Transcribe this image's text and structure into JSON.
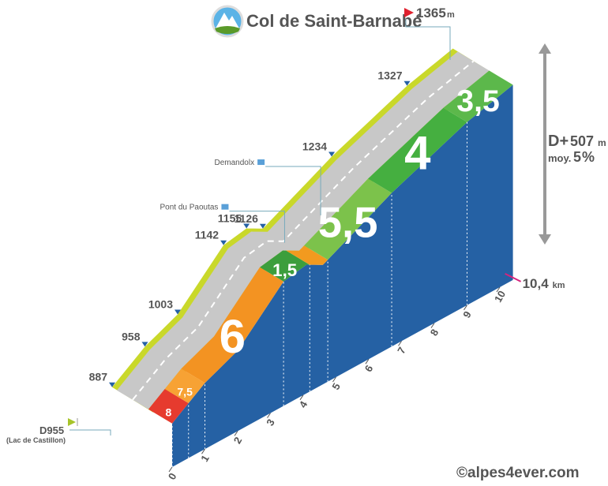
{
  "chart_data": {
    "type": "climb-profile",
    "title": "Col de Saint-Barnabé",
    "summit": {
      "altitude": 1365,
      "unit": "m"
    },
    "distance": {
      "value": 10.4,
      "label": "10,4",
      "unit": "km"
    },
    "elevation_gain": {
      "label": "D+",
      "value": 507,
      "unit": "m"
    },
    "average": {
      "label": "moy.",
      "value": 5,
      "unit": "%"
    },
    "start": {
      "road": "D955",
      "note": "(Lac de Castillon)"
    },
    "km_ticks": [
      0,
      1,
      2,
      3,
      4,
      5,
      6,
      7,
      8,
      9,
      10
    ],
    "segments": [
      {
        "start": 0,
        "end": 0.5,
        "gradient": 8,
        "color": "#e63b2e"
      },
      {
        "start": 0.5,
        "end": 1,
        "gradient": 7.5,
        "label": "7,5",
        "color": "#f7a234"
      },
      {
        "start": 1,
        "end": 3.4,
        "gradient": 6,
        "color": "#f39322"
      },
      {
        "start": 3.4,
        "end": 4.2,
        "gradient": 1.5,
        "label": "1,5",
        "color": "#3c9e3c"
      },
      {
        "start": 4.2,
        "end": 4.75,
        "gradient": null,
        "color": "#f29a1f"
      },
      {
        "start": 4.75,
        "end": 6.7,
        "gradient": 5.5,
        "label": "5,5",
        "color": "#7cc24b"
      },
      {
        "start": 6.7,
        "end": 9,
        "gradient": 4,
        "color": "#45af40"
      },
      {
        "start": 9,
        "end": 10.4,
        "gradient": 3.5,
        "label": "3,5",
        "color": "#5cb84b"
      }
    ],
    "waypoints": [
      {
        "km": 0,
        "altitude": 887
      },
      {
        "km": 1,
        "altitude": 958
      },
      {
        "km": 2,
        "altitude": 1003
      },
      {
        "km": 3.4,
        "altitude": 1142
      },
      {
        "km": 4.1,
        "altitude": 1155
      },
      {
        "km": 4.3,
        "name": "Pont du Paoutas"
      },
      {
        "km": 4.6,
        "altitude": 1126
      },
      {
        "km": 5.4,
        "name": "Demandolx"
      },
      {
        "km": 6.7,
        "altitude": 1234
      },
      {
        "km": 9,
        "altitude": 1327
      }
    ],
    "credit": "©alpes4ever.com"
  }
}
